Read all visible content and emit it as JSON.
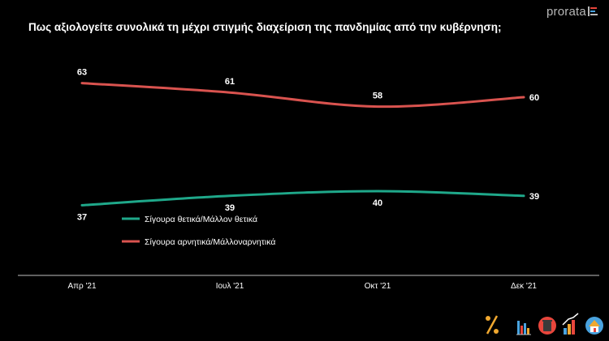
{
  "title": "Πως αξιολογείτε συνολικά τη μέχρι στιγμής διαχείριση της πανδημίας από την κυβέρνηση;",
  "brand": "prorata",
  "icons": [
    "percent-icon",
    "bar-chart-icon",
    "trash-bin-icon",
    "growth-chart-icon",
    "home-network-icon"
  ],
  "colors": {
    "positive": "#1fa88a",
    "negative": "#d9534f",
    "text": "#ffffff",
    "axis": "#bfbfbf",
    "background": "#000000"
  },
  "chart_data": {
    "type": "line",
    "title": "Πως αξιολογείτε συνολικά τη μέχρι στιγμής διαχείριση της πανδημίας από την κυβέρνηση;",
    "categories": [
      "Απρ '21",
      "Ιουλ '21",
      "Οκτ '21",
      "Δεκ '21"
    ],
    "series": [
      {
        "name": "Σίγουρα θετικά/Μάλλον θετικά",
        "values": [
          37,
          39,
          40,
          39
        ],
        "color": "#1fa88a"
      },
      {
        "name": "Σίγουρα αρνητικά/Μάλλοναρνητικά",
        "values": [
          63,
          61,
          58,
          60
        ],
        "color": "#d9534f"
      }
    ],
    "ylim": [
      0,
      100
    ],
    "grid": false,
    "legend_position": "middle-left"
  }
}
